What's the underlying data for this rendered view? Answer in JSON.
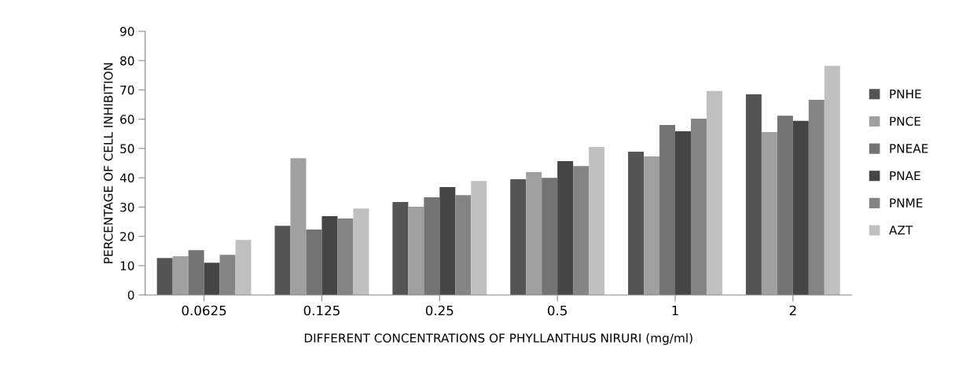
{
  "chart_data": {
    "type": "bar",
    "xlabel": "DIFFERENT CONCENTRATIONS OF PHYLLANTHUS NIRURI (mg/ml)",
    "ylabel": "PERCENTAGE OF CELL INHIBITION",
    "categories": [
      "0.0625",
      "0.125",
      "0.25",
      "0.5",
      "1",
      "2"
    ],
    "series": [
      {
        "name": "PNHE",
        "color": "#545454",
        "values": [
          12.6,
          23.6,
          31.7,
          39.5,
          48.9,
          68.5
        ]
      },
      {
        "name": "PNCE",
        "color": "#a0a0a0",
        "values": [
          13.2,
          46.7,
          30.1,
          41.9,
          47.3,
          55.6
        ]
      },
      {
        "name": "PNEAE",
        "color": "#737373",
        "values": [
          15.3,
          22.3,
          33.3,
          40.0,
          58.0,
          61.2
        ]
      },
      {
        "name": "PNAE",
        "color": "#454545",
        "values": [
          11.0,
          26.9,
          36.8,
          45.7,
          55.9,
          59.4
        ]
      },
      {
        "name": "PNME",
        "color": "#848484",
        "values": [
          13.7,
          26.1,
          34.1,
          44.0,
          60.2,
          66.6
        ]
      },
      {
        "name": "AZT",
        "color": "#c0c0c0",
        "values": [
          18.8,
          29.5,
          38.9,
          50.5,
          69.6,
          78.2
        ]
      }
    ],
    "ylim": [
      0,
      90
    ],
    "yticks": [
      0,
      10,
      20,
      30,
      40,
      50,
      60,
      70,
      80,
      90
    ],
    "grid": false,
    "legend": "right"
  }
}
